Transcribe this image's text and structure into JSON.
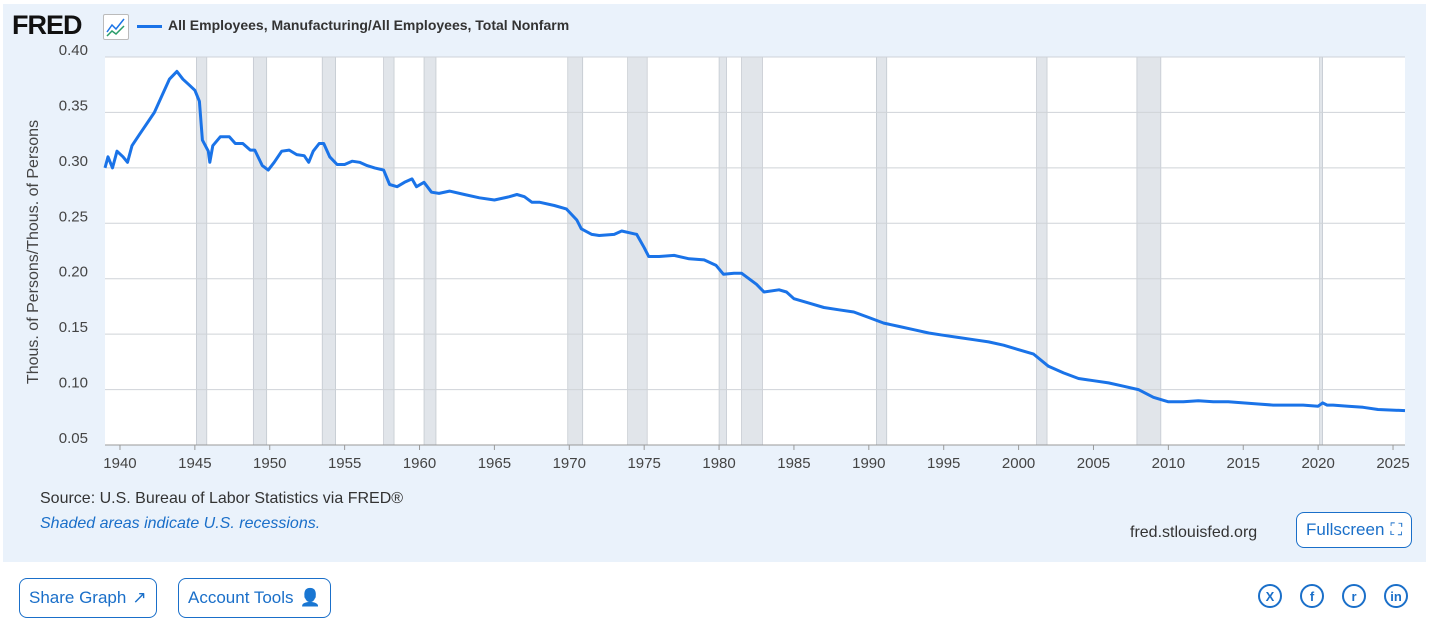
{
  "header": {
    "logo": "FRED",
    "legend": "All Employees, Manufacturing/All Employees, Total Nonfarm"
  },
  "footer": {
    "source": "Source: U.S. Bureau of Labor Statistics via FRED®",
    "recession_note": "Shaded areas indicate U.S. recessions.",
    "site": "fred.stlouisfed.org",
    "fullscreen": "Fullscreen"
  },
  "actions": {
    "share": "Share Graph",
    "account": "Account Tools"
  },
  "social": [
    "X",
    "f",
    "r",
    "in"
  ],
  "colors": {
    "line": "#1a73e8",
    "recession": "#e1e5ea"
  },
  "chart_data": {
    "type": "line",
    "ylabel": "Thous. of Persons/Thous. of Persons",
    "ylim": [
      0.05,
      0.4
    ],
    "xlim": [
      1939,
      2025.8
    ],
    "yticks": [
      "0.05",
      "0.10",
      "0.15",
      "0.20",
      "0.25",
      "0.30",
      "0.35",
      "0.40"
    ],
    "xticks": [
      "1940",
      "1945",
      "1950",
      "1955",
      "1960",
      "1965",
      "1970",
      "1975",
      "1980",
      "1985",
      "1990",
      "1995",
      "2000",
      "2005",
      "2010",
      "2015",
      "2020",
      "2025"
    ],
    "recessions": [
      [
        1945.1,
        1945.8
      ],
      [
        1948.9,
        1949.8
      ],
      [
        1953.5,
        1954.4
      ],
      [
        1957.6,
        1958.3
      ],
      [
        1960.3,
        1961.1
      ],
      [
        1969.9,
        1970.9
      ],
      [
        1973.9,
        1975.2
      ],
      [
        1980.0,
        1980.5
      ],
      [
        1981.5,
        1982.9
      ],
      [
        1990.5,
        1991.2
      ],
      [
        2001.2,
        2001.9
      ],
      [
        2007.9,
        2009.5
      ],
      [
        2020.1,
        2020.3
      ]
    ],
    "series": [
      {
        "name": "All Employees, Manufacturing/All Employees, Total Nonfarm",
        "points": [
          [
            1939,
            0.3
          ],
          [
            1939.2,
            0.31
          ],
          [
            1939.5,
            0.3
          ],
          [
            1939.8,
            0.315
          ],
          [
            1940.2,
            0.31
          ],
          [
            1940.5,
            0.305
          ],
          [
            1940.8,
            0.32
          ],
          [
            1941.3,
            0.33
          ],
          [
            1941.8,
            0.34
          ],
          [
            1942.3,
            0.35
          ],
          [
            1942.8,
            0.365
          ],
          [
            1943.3,
            0.38
          ],
          [
            1943.8,
            0.387
          ],
          [
            1944.2,
            0.38
          ],
          [
            1944.6,
            0.375
          ],
          [
            1945.0,
            0.37
          ],
          [
            1945.3,
            0.36
          ],
          [
            1945.5,
            0.325
          ],
          [
            1945.9,
            0.315
          ],
          [
            1946.0,
            0.305
          ],
          [
            1946.2,
            0.32
          ],
          [
            1946.7,
            0.328
          ],
          [
            1947.3,
            0.328
          ],
          [
            1947.7,
            0.322
          ],
          [
            1948.2,
            0.322
          ],
          [
            1948.7,
            0.316
          ],
          [
            1949.0,
            0.316
          ],
          [
            1949.5,
            0.302
          ],
          [
            1949.9,
            0.298
          ],
          [
            1950.3,
            0.305
          ],
          [
            1950.8,
            0.315
          ],
          [
            1951.3,
            0.316
          ],
          [
            1951.8,
            0.312
          ],
          [
            1952.3,
            0.311
          ],
          [
            1952.6,
            0.305
          ],
          [
            1952.9,
            0.315
          ],
          [
            1953.3,
            0.322
          ],
          [
            1953.6,
            0.322
          ],
          [
            1954.0,
            0.31
          ],
          [
            1954.5,
            0.303
          ],
          [
            1955,
            0.303
          ],
          [
            1955.5,
            0.306
          ],
          [
            1956,
            0.305
          ],
          [
            1956.5,
            0.302
          ],
          [
            1957,
            0.3
          ],
          [
            1957.6,
            0.298
          ],
          [
            1958.0,
            0.285
          ],
          [
            1958.5,
            0.283
          ],
          [
            1959,
            0.287
          ],
          [
            1959.5,
            0.29
          ],
          [
            1959.8,
            0.283
          ],
          [
            1960.3,
            0.287
          ],
          [
            1960.8,
            0.278
          ],
          [
            1961.3,
            0.277
          ],
          [
            1962,
            0.279
          ],
          [
            1963,
            0.276
          ],
          [
            1964,
            0.273
          ],
          [
            1965,
            0.271
          ],
          [
            1966,
            0.274
          ],
          [
            1966.5,
            0.276
          ],
          [
            1967,
            0.274
          ],
          [
            1967.5,
            0.269
          ],
          [
            1968,
            0.269
          ],
          [
            1969,
            0.266
          ],
          [
            1969.8,
            0.263
          ],
          [
            1970.5,
            0.253
          ],
          [
            1970.8,
            0.245
          ],
          [
            1971.5,
            0.24
          ],
          [
            1972,
            0.239
          ],
          [
            1973,
            0.24
          ],
          [
            1973.5,
            0.243
          ],
          [
            1974.5,
            0.24
          ],
          [
            1975,
            0.228
          ],
          [
            1975.3,
            0.22
          ],
          [
            1976,
            0.22
          ],
          [
            1977,
            0.221
          ],
          [
            1978,
            0.218
          ],
          [
            1979,
            0.217
          ],
          [
            1979.8,
            0.212
          ],
          [
            1980.3,
            0.204
          ],
          [
            1981,
            0.205
          ],
          [
            1981.5,
            0.205
          ],
          [
            1982.5,
            0.195
          ],
          [
            1983,
            0.188
          ],
          [
            1984,
            0.19
          ],
          [
            1984.5,
            0.188
          ],
          [
            1985,
            0.182
          ],
          [
            1986,
            0.178
          ],
          [
            1987,
            0.174
          ],
          [
            1988,
            0.172
          ],
          [
            1989,
            0.17
          ],
          [
            1990,
            0.165
          ],
          [
            1991,
            0.16
          ],
          [
            1992,
            0.157
          ],
          [
            1993,
            0.154
          ],
          [
            1994,
            0.151
          ],
          [
            1995,
            0.149
          ],
          [
            1996,
            0.147
          ],
          [
            1997,
            0.145
          ],
          [
            1998,
            0.143
          ],
          [
            1999,
            0.14
          ],
          [
            2000,
            0.136
          ],
          [
            2001,
            0.132
          ],
          [
            2002,
            0.121
          ],
          [
            2003,
            0.115
          ],
          [
            2004,
            0.11
          ],
          [
            2005,
            0.108
          ],
          [
            2006,
            0.106
          ],
          [
            2007,
            0.103
          ],
          [
            2008,
            0.1
          ],
          [
            2009,
            0.093
          ],
          [
            2010,
            0.089
          ],
          [
            2011,
            0.089
          ],
          [
            2012,
            0.09
          ],
          [
            2013,
            0.089
          ],
          [
            2014,
            0.089
          ],
          [
            2015,
            0.088
          ],
          [
            2016,
            0.087
          ],
          [
            2017,
            0.086
          ],
          [
            2018,
            0.086
          ],
          [
            2019,
            0.086
          ],
          [
            2020,
            0.085
          ],
          [
            2020.3,
            0.088
          ],
          [
            2020.6,
            0.086
          ],
          [
            2021,
            0.086
          ],
          [
            2022,
            0.085
          ],
          [
            2023,
            0.084
          ],
          [
            2024,
            0.082
          ],
          [
            2025.8,
            0.081
          ]
        ]
      }
    ]
  }
}
